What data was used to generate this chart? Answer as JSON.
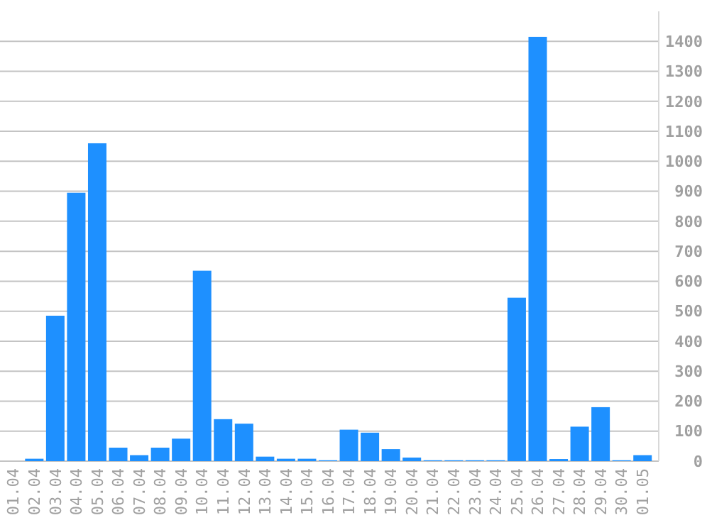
{
  "chart_data": {
    "type": "bar",
    "categories": [
      "01.04",
      "02.04",
      "03.04",
      "04.04",
      "05.04",
      "06.04",
      "07.04",
      "08.04",
      "09.04",
      "10.04",
      "11.04",
      "12.04",
      "13.04",
      "14.04",
      "15.04",
      "16.04",
      "17.04",
      "18.04",
      "19.04",
      "20.04",
      "21.04",
      "22.04",
      "23.04",
      "24.04",
      "25.04",
      "26.04",
      "27.04",
      "28.04",
      "29.04",
      "30.04",
      "01.05"
    ],
    "values": [
      0,
      8,
      485,
      895,
      1060,
      45,
      20,
      45,
      75,
      635,
      140,
      125,
      15,
      8,
      8,
      3,
      105,
      95,
      40,
      12,
      3,
      3,
      3,
      3,
      545,
      1415,
      7,
      115,
      180,
      3,
      20
    ],
    "color": "#1e90ff",
    "ylim": [
      0,
      1500
    ],
    "yticks": [
      0,
      100,
      200,
      300,
      400,
      500,
      600,
      700,
      800,
      900,
      1000,
      1100,
      1200,
      1300,
      1400
    ],
    "grid": "y"
  }
}
